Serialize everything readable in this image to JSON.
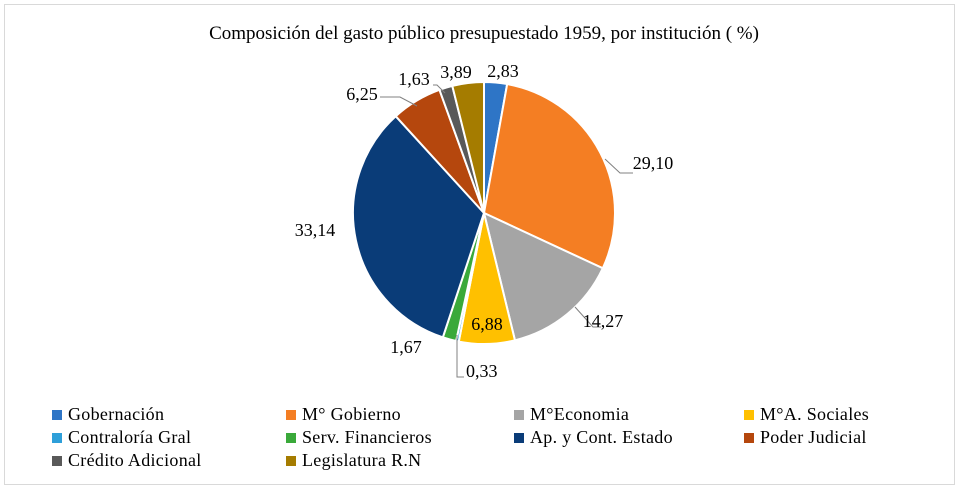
{
  "chart_data": {
    "type": "pie",
    "title": "Composición del gasto público presupuestado 1959,  por institución ( %)",
    "slices": [
      {
        "name": "Gobernación",
        "value": 2.83,
        "label": "2,83",
        "color": "#2e75c6"
      },
      {
        "name": "M° Gobierno",
        "value": 29.1,
        "label": "29,10",
        "color": "#f47e23"
      },
      {
        "name": "M°Economia",
        "value": 14.27,
        "label": "14,27",
        "color": "#a5a5a5"
      },
      {
        "name": "M°A. Sociales",
        "value": 6.88,
        "label": "6,88",
        "color": "#ffc000"
      },
      {
        "name": "Contraloría Gral",
        "value": 0.33,
        "label": "0,33",
        "color": "#2e9fd9"
      },
      {
        "name": "Serv. Financieros",
        "value": 1.67,
        "label": "1,67",
        "color": "#3aa93a"
      },
      {
        "name": "Ap. y Cont. Estado",
        "value": 33.14,
        "label": "33,14",
        "color": "#0a3c78"
      },
      {
        "name": "Poder Judicial",
        "value": 6.25,
        "label": "6,25",
        "color": "#b5470d"
      },
      {
        "name": "Crédito Adicional",
        "value": 1.63,
        "label": "1,63",
        "color": "#595959"
      },
      {
        "name": "Legislatura R.N",
        "value": 3.89,
        "label": "3,89",
        "color": "#a57c00"
      }
    ],
    "legend_position": "bottom"
  }
}
